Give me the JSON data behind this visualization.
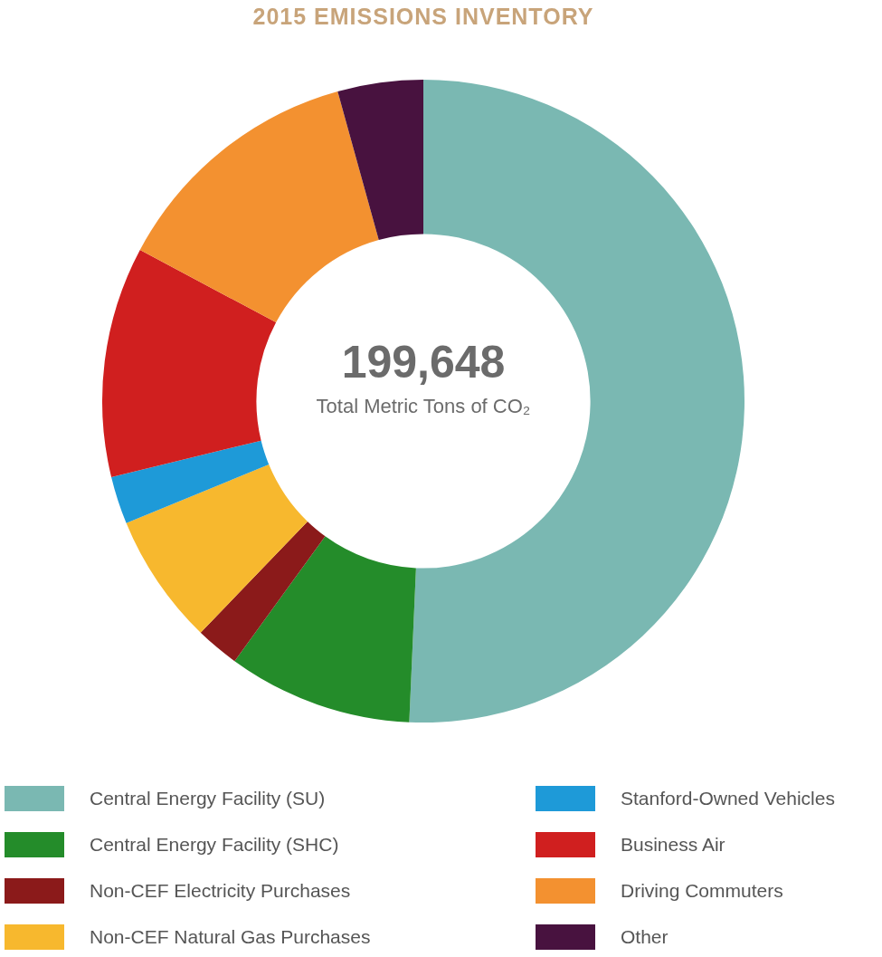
{
  "chart_data": {
    "type": "donut",
    "title": "2015 EMISSIONS INVENTORY",
    "categories": [
      "Central Energy Facility (SU)",
      "Central Energy Facility (SHC)",
      "Non-CEF Electricity Purchases",
      "Non-CEF Natural Gas Purchases",
      "Stanford-Owned Vehicles",
      "Business Air",
      "Driving Commuters",
      "Other"
    ],
    "values": [
      50.7,
      9.3,
      2.2,
      6.6,
      2.4,
      11.6,
      12.9,
      4.3
    ],
    "colors": [
      "#7ab8b2",
      "#248c2a",
      "#8b1a1a",
      "#f7b82e",
      "#1e9ad8",
      "#d01f1f",
      "#f39130",
      "#48123f"
    ],
    "annotations": [
      "199,648",
      "Total Metric Tons of CO₂"
    ],
    "legend": "bottom"
  }
}
